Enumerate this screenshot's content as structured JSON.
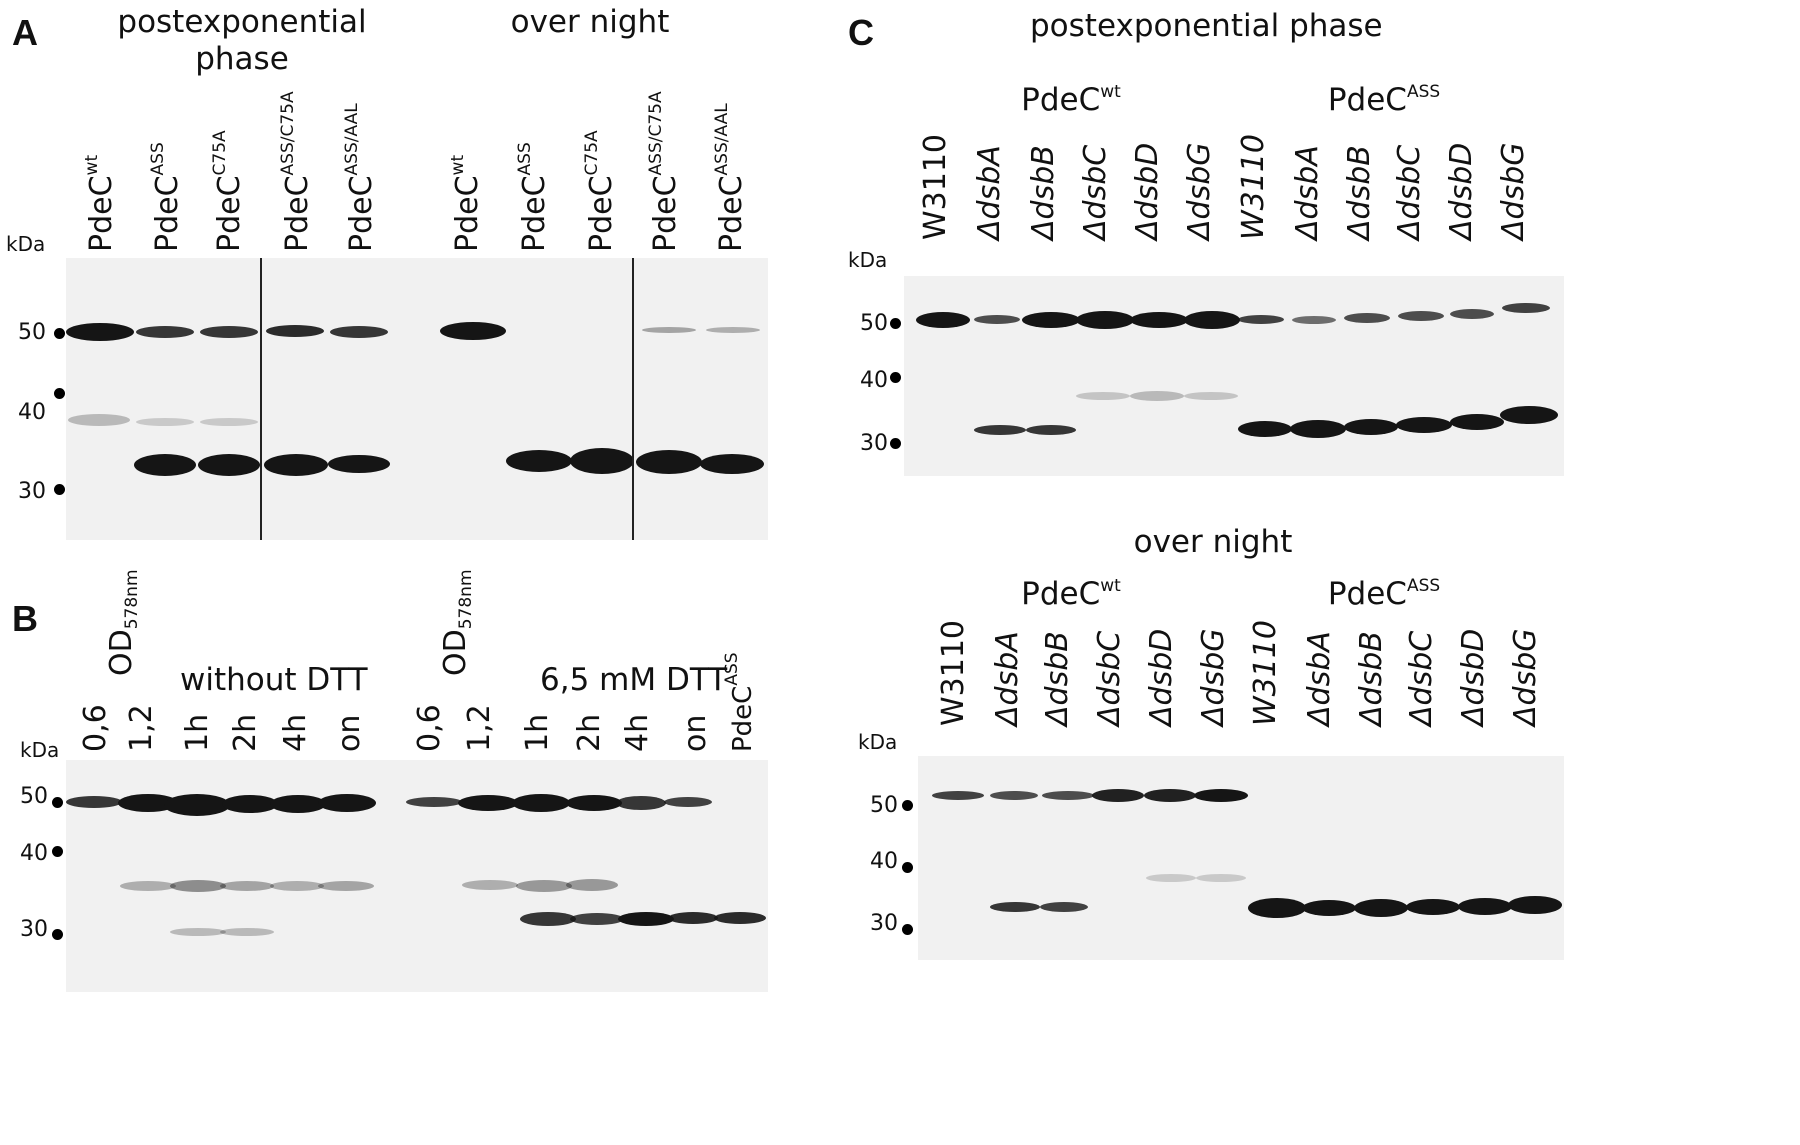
{
  "panel_a": {
    "letter": "A",
    "group1_line1": "postexponential",
    "group1_line2": "phase",
    "group2": "over night",
    "kda": "kDa",
    "lanes": [
      {
        "base": "PdeC",
        "sup": "wt"
      },
      {
        "base": "PdeC",
        "sup": "ASS"
      },
      {
        "base": "PdeC",
        "sup": "C75A"
      },
      {
        "base": "PdeC",
        "sup": "ASS/C75A"
      },
      {
        "base": "PdeC",
        "sup": "ASS/AAL"
      },
      {
        "base": "PdeC",
        "sup": "wt"
      },
      {
        "base": "PdeC",
        "sup": "ASS"
      },
      {
        "base": "PdeC",
        "sup": "C75A"
      },
      {
        "base": "PdeC",
        "sup": "ASS/C75A"
      },
      {
        "base": "PdeC",
        "sup": "ASS/AAL"
      }
    ],
    "mw": [
      "50",
      "40",
      "30"
    ]
  },
  "panel_b": {
    "letter": "B",
    "od_base": "OD",
    "od_sub": "578nm",
    "group1": "without DTT",
    "group2": "6,5 mM DTT",
    "kda": "kDa",
    "lanes": [
      "0,6",
      "1,2",
      "1h",
      "2h",
      "4h",
      "on",
      "0,6",
      "1,2",
      "1h",
      "2h",
      "4h",
      "on"
    ],
    "last_lane": {
      "base": "PdeC",
      "sup": "ASS"
    },
    "mw": [
      "50",
      "40",
      "30"
    ]
  },
  "panel_c": {
    "letter": "C",
    "top_title": "postexponential phase",
    "bottom_title": "over night",
    "group_wt": {
      "base": "PdeC",
      "sup": "wt"
    },
    "group_ass": {
      "base": "PdeC",
      "sup": "ASS"
    },
    "kda": "kDa",
    "lanes_top": [
      "W3110",
      "ΔdsbA",
      "ΔdsbB",
      "ΔdsbC",
      "ΔdsbD",
      "ΔdsbG",
      "W3110",
      "ΔdsbA",
      "ΔdsbB",
      "ΔdsbC",
      "ΔdsbD",
      "ΔdsbG"
    ],
    "lanes_bottom": [
      "W3110",
      "ΔdsbA",
      "ΔdsbB",
      "ΔdsbC",
      "ΔdsbD",
      "ΔdsbG",
      "W3110",
      "ΔdsbA",
      "ΔdsbB",
      "ΔdsbC",
      "ΔdsbD",
      "ΔdsbG"
    ],
    "mw_top": [
      "50",
      "40",
      "30"
    ],
    "mw_bottom": [
      "50",
      "40",
      "30"
    ]
  }
}
